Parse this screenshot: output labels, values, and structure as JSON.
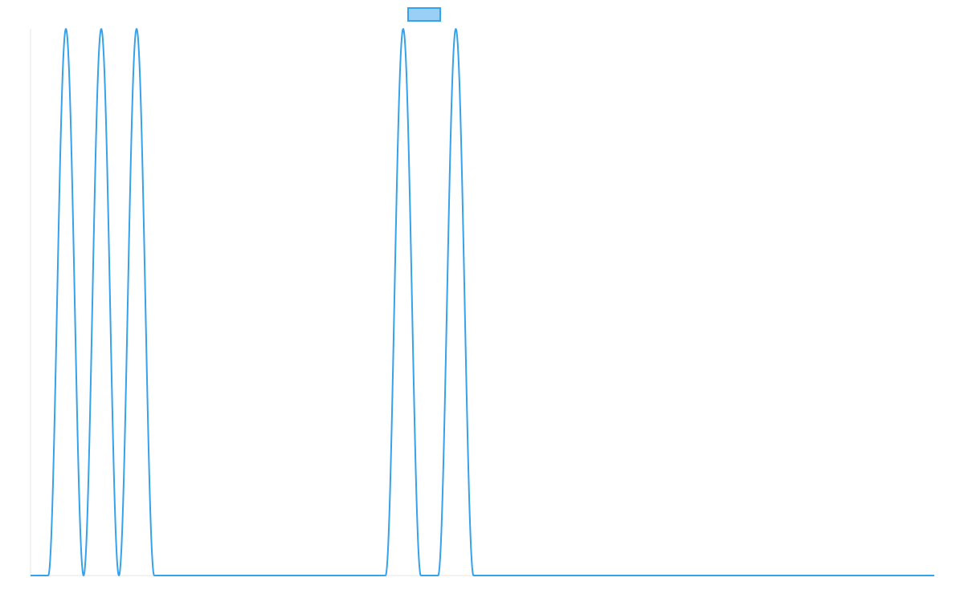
{
  "chart_data": {
    "type": "line",
    "title": "",
    "xlabel": "",
    "ylabel": "",
    "legend": {
      "placement": "top-center",
      "entries": [
        {
          "label": "",
          "fill": "#9ad0f5",
          "stroke": "#36a2eb"
        }
      ]
    },
    "grid": false,
    "x_domain": [
      0,
      1
    ],
    "y_domain": [
      0,
      1
    ],
    "baseline": 0,
    "peak_height": 1,
    "series": [
      {
        "color": "#36a2eb",
        "peaks": [
          {
            "start": 0.0196,
            "end": 0.0587
          },
          {
            "start": 0.0587,
            "end": 0.0978
          },
          {
            "start": 0.0978,
            "end": 0.1369
          },
          {
            "start": 0.3928,
            "end": 0.4319
          },
          {
            "start": 0.451,
            "end": 0.4902
          }
        ]
      }
    ]
  }
}
